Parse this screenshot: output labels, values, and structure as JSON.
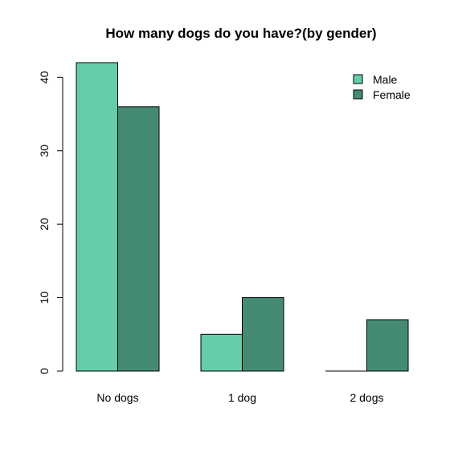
{
  "chart_data": {
    "type": "bar",
    "title": "How many dogs do you have?(by gender)",
    "xlabel": "",
    "ylabel": "",
    "categories": [
      "No dogs",
      "1 dog",
      "2 dogs"
    ],
    "series": [
      {
        "name": "Male",
        "values": [
          42,
          5,
          0
        ],
        "color": "#66CDAA"
      },
      {
        "name": "Female",
        "values": [
          36,
          10,
          7
        ],
        "color": "#458B74"
      }
    ],
    "ylim": [
      0,
      42
    ],
    "yticks": [
      0,
      10,
      20,
      30,
      40
    ],
    "grid": false,
    "legend_position": "top-right",
    "bar_border_color": "#000000"
  }
}
